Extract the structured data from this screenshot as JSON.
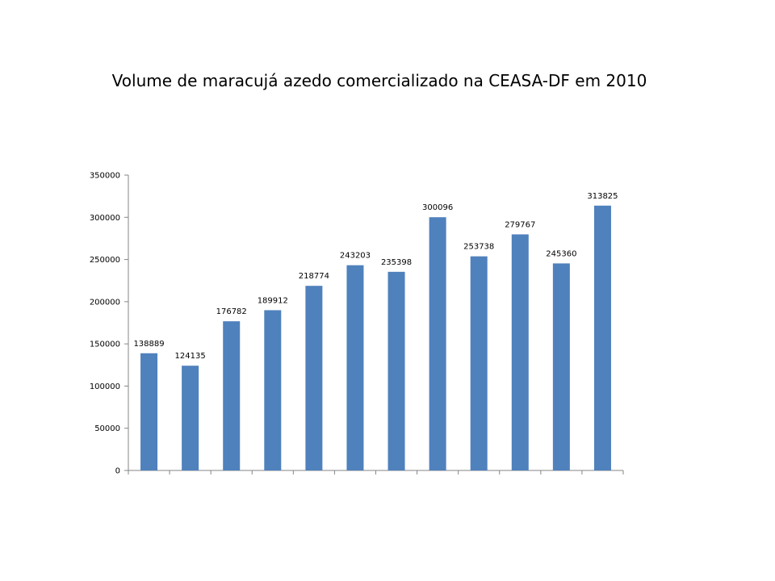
{
  "chart_data": {
    "type": "bar",
    "title": "Volume de maracujá azedo comercializado na CEASA-DF em 2010",
    "xlabel": "",
    "ylabel": "",
    "categories": [
      "",
      "",
      "",
      "",
      "",
      "",
      "",
      "",
      "",
      "",
      "",
      ""
    ],
    "values": [
      138889,
      124135,
      176782,
      189912,
      218774,
      243203,
      235398,
      300096,
      253738,
      279767,
      245360,
      313825
    ],
    "ylim": [
      0,
      350000
    ],
    "yticks": [
      0,
      50000,
      100000,
      150000,
      200000,
      250000,
      300000,
      350000
    ],
    "data_labels": true,
    "grid": false,
    "legend": "none",
    "bar_color": "#4F81BD"
  }
}
